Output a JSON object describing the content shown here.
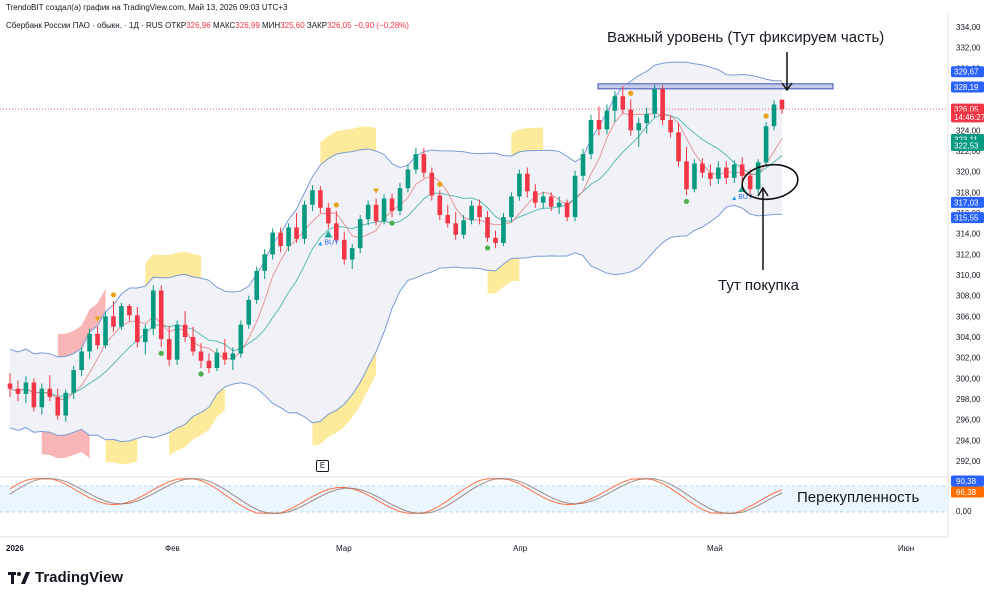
{
  "header": {
    "line1": "TrendoBIT создал(а) график на TradingView.com, Май 13, 2026 09:03 UTC+3",
    "symbol": "Сбербанк России ПАО · обыкн. · 1Д · RUS",
    "open_label": "ОТКР",
    "open_value": "326,96",
    "high_label": "МАКС",
    "high_value": "326,99",
    "low_label": "МИН",
    "low_value": "325,60",
    "close_label": "ЗАКР",
    "close_value": "326,05",
    "change_value": "−0,90 (−0,28%)"
  },
  "annotations": {
    "level_text": "Важный уровень (Тут фиксируем часть)",
    "buy_text": "Тут покупка",
    "overbought_text": "Перекупленность"
  },
  "e_button": "E",
  "brand": {
    "name": "TradingView"
  },
  "colors": {
    "up": "#089981",
    "down": "#f23645",
    "band": "#7b9cd6",
    "band_fill": "#f0f2f7"
  },
  "price_labels": [
    {
      "text": "329,67",
      "bg": "#2962ff",
      "value": 329.67
    },
    {
      "text": "328,19",
      "bg": "#2962ff",
      "value": 328.19
    },
    {
      "text": "326,05",
      "bg": "#f23645",
      "value": 326.05
    },
    {
      "text": "14:46:27",
      "bg": "#f23645",
      "value": 325.3
    },
    {
      "text": "323,11",
      "bg": "#089981",
      "value": 323.11
    },
    {
      "text": "322,53",
      "bg": "#089981",
      "value": 322.53
    },
    {
      "text": "317,03",
      "bg": "#2962ff",
      "value": 317.03
    },
    {
      "text": "315,55",
      "bg": "#2962ff",
      "value": 315.55
    }
  ],
  "osc_labels": [
    {
      "text": "90,38",
      "bg": "#2962ff"
    },
    {
      "text": "66,38",
      "bg": "#ff6d00"
    }
  ],
  "chart_data": {
    "type": "candlestick",
    "y_ticks": [
      334,
      332,
      330,
      328,
      326,
      324,
      322,
      320,
      318,
      316,
      314,
      312,
      310,
      308,
      306,
      304,
      302,
      300,
      298,
      296,
      294,
      292
    ],
    "y_tick_labels": [
      "334,00",
      "332,00",
      "330,00",
      "328,00",
      "326,00",
      "324,00",
      "322,00",
      "320,00",
      "318,00",
      "316,00",
      "314,00",
      "312,00",
      "310,00",
      "308,00",
      "306,00",
      "304,00",
      "302,00",
      "300,00",
      "298,00",
      "296,00",
      "294,00",
      "292,00"
    ],
    "ylim": [
      290,
      335
    ],
    "x_labels": [
      "2026",
      "Фев",
      "Мар",
      "Апр",
      "Май",
      "Июн"
    ],
    "osc_ticks": [
      "100,00",
      "0,00"
    ],
    "candles": [
      [
        299.5,
        300.5,
        298.2,
        299.0
      ],
      [
        299.0,
        299.8,
        297.8,
        298.5
      ],
      [
        298.5,
        300.2,
        297.6,
        299.6
      ],
      [
        299.6,
        300.0,
        296.8,
        297.2
      ],
      [
        297.2,
        299.5,
        296.5,
        299.0
      ],
      [
        299.0,
        300.3,
        297.8,
        298.2
      ],
      [
        298.2,
        299.0,
        296.0,
        296.4
      ],
      [
        296.4,
        298.9,
        295.8,
        298.6
      ],
      [
        298.6,
        301.2,
        298.0,
        300.8
      ],
      [
        300.8,
        303.0,
        300.2,
        302.6
      ],
      [
        302.6,
        304.8,
        301.9,
        304.3
      ],
      [
        304.3,
        305.0,
        302.8,
        303.2
      ],
      [
        303.2,
        306.4,
        302.9,
        306.0
      ],
      [
        306.0,
        307.5,
        304.5,
        305.0
      ],
      [
        305.0,
        307.3,
        304.7,
        307.0
      ],
      [
        307.0,
        307.2,
        305.5,
        306.1
      ],
      [
        306.1,
        306.9,
        303.0,
        303.5
      ],
      [
        303.5,
        305.2,
        302.3,
        304.8
      ],
      [
        304.8,
        309.0,
        304.2,
        308.5
      ],
      [
        308.5,
        309.0,
        303.0,
        303.8
      ],
      [
        303.8,
        305.1,
        301.2,
        301.8
      ],
      [
        301.8,
        305.6,
        301.3,
        305.2
      ],
      [
        305.2,
        306.5,
        303.5,
        304.0
      ],
      [
        304.0,
        305.0,
        302.2,
        302.6
      ],
      [
        302.6,
        303.4,
        301.0,
        301.7
      ],
      [
        301.7,
        302.4,
        300.5,
        301.0
      ],
      [
        301.0,
        302.9,
        300.7,
        302.5
      ],
      [
        302.5,
        303.8,
        301.3,
        301.8
      ],
      [
        301.8,
        303.0,
        300.8,
        302.4
      ],
      [
        302.4,
        305.6,
        302.0,
        305.2
      ],
      [
        305.2,
        308.0,
        304.8,
        307.6
      ],
      [
        307.6,
        310.8,
        307.2,
        310.4
      ],
      [
        310.4,
        312.5,
        309.6,
        312.0
      ],
      [
        312.0,
        314.5,
        311.5,
        314.1
      ],
      [
        314.1,
        314.6,
        312.2,
        312.8
      ],
      [
        312.8,
        315.0,
        312.3,
        314.6
      ],
      [
        314.6,
        316.0,
        313.1,
        313.5
      ],
      [
        313.5,
        317.2,
        313.0,
        316.8
      ],
      [
        316.8,
        318.7,
        316.2,
        318.2
      ],
      [
        318.2,
        318.6,
        316.0,
        316.5
      ],
      [
        316.5,
        317.0,
        314.5,
        315.0
      ],
      [
        315.0,
        316.2,
        313.1,
        313.4
      ],
      [
        313.4,
        314.2,
        311.0,
        311.5
      ],
      [
        311.5,
        313.0,
        310.6,
        312.6
      ],
      [
        312.6,
        315.8,
        312.1,
        315.4
      ],
      [
        315.4,
        317.2,
        314.8,
        316.8
      ],
      [
        316.8,
        317.4,
        314.8,
        315.2
      ],
      [
        315.2,
        317.8,
        314.9,
        317.4
      ],
      [
        317.4,
        317.9,
        315.6,
        316.2
      ],
      [
        316.2,
        318.9,
        315.8,
        318.4
      ],
      [
        318.4,
        320.7,
        318.0,
        320.2
      ],
      [
        320.2,
        322.3,
        319.8,
        321.7
      ],
      [
        321.7,
        322.3,
        319.4,
        319.9
      ],
      [
        319.9,
        320.4,
        317.2,
        317.7
      ],
      [
        317.7,
        318.2,
        315.3,
        315.8
      ],
      [
        315.8,
        316.8,
        314.6,
        315.0
      ],
      [
        315.0,
        316.1,
        313.4,
        313.9
      ],
      [
        313.9,
        315.8,
        313.5,
        315.3
      ],
      [
        315.3,
        317.2,
        314.9,
        316.7
      ],
      [
        316.7,
        317.3,
        314.9,
        315.6
      ],
      [
        315.6,
        316.2,
        313.2,
        313.6
      ],
      [
        313.6,
        314.3,
        312.6,
        313.1
      ],
      [
        313.1,
        316.0,
        312.8,
        315.6
      ],
      [
        315.6,
        318.0,
        315.1,
        317.6
      ],
      [
        317.6,
        320.2,
        317.2,
        319.8
      ],
      [
        319.8,
        320.4,
        317.5,
        318.1
      ],
      [
        318.1,
        318.8,
        316.5,
        317.0
      ],
      [
        317.0,
        318.0,
        316.4,
        317.6
      ],
      [
        317.6,
        318.0,
        316.2,
        316.6
      ],
      [
        316.6,
        317.6,
        315.9,
        317.0
      ],
      [
        317.0,
        317.3,
        315.2,
        315.6
      ],
      [
        315.6,
        320.1,
        315.2,
        319.6
      ],
      [
        319.6,
        322.2,
        319.1,
        321.7
      ],
      [
        321.7,
        325.5,
        321.2,
        325.0
      ],
      [
        325.0,
        326.3,
        323.5,
        324.1
      ],
      [
        324.1,
        326.5,
        323.6,
        325.9
      ],
      [
        325.9,
        327.8,
        324.8,
        327.3
      ],
      [
        327.3,
        328.3,
        325.6,
        326.0
      ],
      [
        326.0,
        327.0,
        323.5,
        324.0
      ],
      [
        324.0,
        325.2,
        322.4,
        324.7
      ],
      [
        324.7,
        326.2,
        323.7,
        325.6
      ],
      [
        325.6,
        328.4,
        325.2,
        328.0
      ],
      [
        328.0,
        328.4,
        324.5,
        325.0
      ],
      [
        325.0,
        325.4,
        323.3,
        323.8
      ],
      [
        323.8,
        324.7,
        320.5,
        321.0
      ],
      [
        321.0,
        322.4,
        317.7,
        318.3
      ],
      [
        318.3,
        321.2,
        318.0,
        320.8
      ],
      [
        320.8,
        321.3,
        319.4,
        319.9
      ],
      [
        319.9,
        320.7,
        318.6,
        319.3
      ],
      [
        319.3,
        321.0,
        318.8,
        320.4
      ],
      [
        320.4,
        321.0,
        318.8,
        319.4
      ],
      [
        319.4,
        321.1,
        318.9,
        320.7
      ],
      [
        320.7,
        321.4,
        318.9,
        319.6
      ],
      [
        319.6,
        320.2,
        317.8,
        318.3
      ],
      [
        318.3,
        321.2,
        317.9,
        320.9
      ],
      [
        320.9,
        324.8,
        320.5,
        324.4
      ],
      [
        324.4,
        326.9,
        324.0,
        326.5
      ],
      [
        326.96,
        326.99,
        325.6,
        326.05
      ]
    ]
  }
}
